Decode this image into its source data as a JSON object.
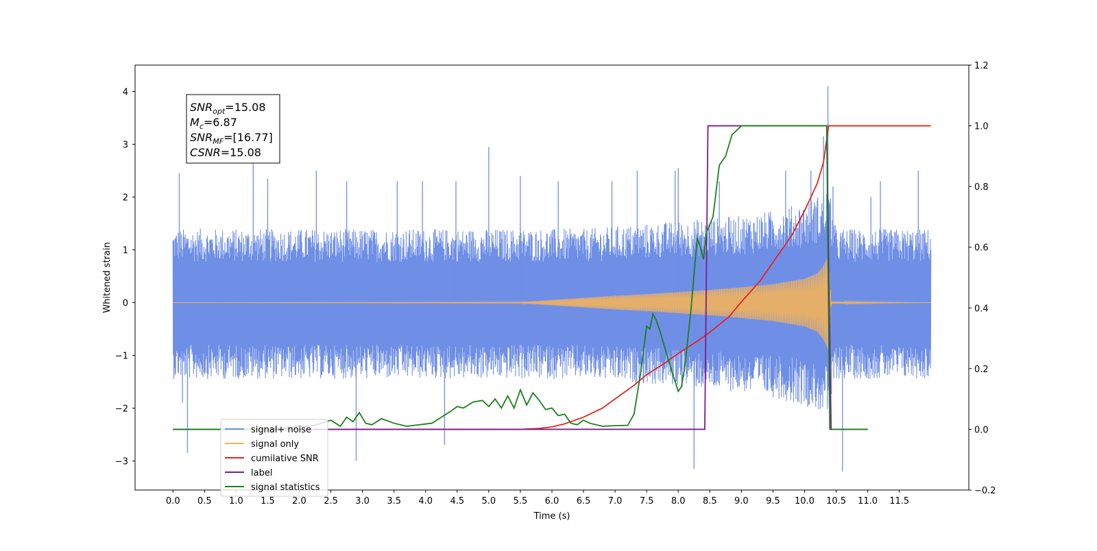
{
  "chart_data": {
    "type": "line",
    "title": "",
    "xlabel": "Time (s)",
    "ylabel": "Whitened strain",
    "xlim": [
      -0.6,
      12.6
    ],
    "ylim": [
      -3.55,
      4.5
    ],
    "y2lim": [
      -0.2,
      1.2
    ],
    "x_ticks": [
      0.0,
      0.5,
      1.0,
      1.5,
      2.0,
      2.5,
      3.0,
      3.5,
      4.0,
      4.5,
      5.0,
      5.5,
      6.0,
      6.5,
      7.0,
      7.5,
      8.0,
      8.5,
      9.0,
      9.5,
      10.0,
      10.5,
      11.0,
      11.5
    ],
    "x_tick_labels": [
      "0.0",
      "0.5",
      "1.0",
      "1.5",
      "2.0",
      "2.5",
      "3.0",
      "3.5",
      "4.0",
      "4.5",
      "5.0",
      "5.5",
      "6.0",
      "6.5",
      "7.0",
      "7.5",
      "8.0",
      "8.5",
      "9.0",
      "9.5",
      "10.0",
      "10.5",
      "11.0",
      "11.5"
    ],
    "y_ticks": [
      -3,
      -2,
      -1,
      0,
      1,
      2,
      3,
      4
    ],
    "y_tick_labels": [
      "−3",
      "−2",
      "−1",
      "0",
      "1",
      "2",
      "3",
      "4"
    ],
    "y2_ticks": [
      -0.2,
      0.0,
      0.2,
      0.4,
      0.6,
      0.8,
      1.0,
      1.2
    ],
    "y2_tick_labels": [
      "−0.2",
      "0.0",
      "0.2",
      "0.4",
      "0.6",
      "0.8",
      "1.0",
      "1.2"
    ],
    "grid": false,
    "legend_position": "lower-left",
    "annotation": {
      "lines": [
        {
          "base": "SNR",
          "sub": "opt",
          "rest": "=15.08"
        },
        {
          "base": "M",
          "sub": "c",
          "rest": "=6.87"
        },
        {
          "base": "SNR",
          "sub": "MF",
          "rest": "=[16.77]"
        },
        {
          "base": "CSNR",
          "sub": "",
          "rest": "=15.08"
        }
      ]
    },
    "series": [
      {
        "name": "signal+ noise",
        "color": "#6f8fe6",
        "axis": "left",
        "kind": "noise_envelope",
        "t_start": 0.0,
        "t_end": 12.0,
        "envelope_x": [
          0.0,
          1.0,
          2.0,
          3.0,
          4.0,
          5.0,
          6.0,
          6.5,
          7.0,
          7.5,
          8.0,
          8.5,
          9.0,
          9.5,
          10.0,
          10.3,
          10.38,
          10.5,
          11.0,
          12.0
        ],
        "envelope_upper": [
          1.4,
          1.4,
          1.4,
          1.4,
          1.4,
          1.4,
          1.4,
          1.4,
          1.45,
          1.5,
          1.55,
          1.6,
          1.65,
          1.75,
          1.9,
          2.1,
          2.2,
          1.4,
          1.4,
          1.4
        ],
        "envelope_lower": [
          -1.45,
          -1.45,
          -1.45,
          -1.45,
          -1.45,
          -1.45,
          -1.45,
          -1.45,
          -1.5,
          -1.55,
          -1.6,
          -1.65,
          -1.7,
          -1.8,
          -1.95,
          -2.1,
          -2.2,
          -1.45,
          -1.45,
          -1.45
        ],
        "spikes": [
          {
            "x": 0.1,
            "y": 2.45
          },
          {
            "x": 0.15,
            "y": -1.9
          },
          {
            "x": 0.23,
            "y": -2.85
          },
          {
            "x": 1.27,
            "y": 2.65
          },
          {
            "x": 1.5,
            "y": 2.35
          },
          {
            "x": 2.27,
            "y": 2.5
          },
          {
            "x": 2.75,
            "y": 2.3
          },
          {
            "x": 2.9,
            "y": -3.0
          },
          {
            "x": 3.55,
            "y": 2.3
          },
          {
            "x": 3.95,
            "y": 2.3
          },
          {
            "x": 4.3,
            "y": -2.7
          },
          {
            "x": 4.48,
            "y": 2.3
          },
          {
            "x": 5.0,
            "y": 2.95
          },
          {
            "x": 5.5,
            "y": 2.4
          },
          {
            "x": 6.1,
            "y": 2.3
          },
          {
            "x": 6.95,
            "y": 2.3
          },
          {
            "x": 7.35,
            "y": 2.5
          },
          {
            "x": 7.95,
            "y": 2.5
          },
          {
            "x": 8.0,
            "y": 2.55
          },
          {
            "x": 8.25,
            "y": -3.15
          },
          {
            "x": 8.65,
            "y": 2.3
          },
          {
            "x": 9.7,
            "y": 2.5
          },
          {
            "x": 10.1,
            "y": 2.5
          },
          {
            "x": 10.3,
            "y": 3.15
          },
          {
            "x": 10.37,
            "y": 4.1
          },
          {
            "x": 10.45,
            "y": 2.2
          },
          {
            "x": 10.6,
            "y": -3.2
          },
          {
            "x": 11.05,
            "y": 2.0
          },
          {
            "x": 11.2,
            "y": 2.3
          },
          {
            "x": 11.8,
            "y": 2.5
          }
        ]
      },
      {
        "name": "signal only",
        "color": "#f2b25c",
        "axis": "left",
        "kind": "chirp",
        "t_start": 0.0,
        "t_end": 12.0,
        "envelope_x": [
          0.0,
          5.5,
          6.0,
          6.5,
          7.0,
          7.5,
          8.0,
          8.5,
          9.0,
          9.5,
          10.0,
          10.2,
          10.3,
          10.38,
          10.42,
          12.0
        ],
        "envelope_amp": [
          0.0,
          0.01,
          0.05,
          0.09,
          0.13,
          0.16,
          0.2,
          0.24,
          0.29,
          0.35,
          0.45,
          0.55,
          0.7,
          0.9,
          0.02,
          0.0
        ]
      },
      {
        "name": "cumilative SNR",
        "color": "#e8221c",
        "axis": "right",
        "x": [
          0.0,
          5.5,
          5.8,
          6.0,
          6.2,
          6.5,
          6.8,
          7.0,
          7.3,
          7.5,
          7.8,
          8.0,
          8.3,
          8.5,
          8.8,
          9.0,
          9.3,
          9.5,
          9.8,
          10.0,
          10.2,
          10.3,
          10.38,
          11.0,
          12.0
        ],
        "values": [
          0.0,
          0.0,
          0.003,
          0.008,
          0.018,
          0.04,
          0.07,
          0.1,
          0.145,
          0.18,
          0.22,
          0.25,
          0.29,
          0.32,
          0.37,
          0.42,
          0.49,
          0.55,
          0.64,
          0.72,
          0.81,
          0.88,
          1.0,
          1.0,
          1.0
        ]
      },
      {
        "name": "label",
        "color": "#7b1c87",
        "axis": "right",
        "x": [
          0.0,
          8.42,
          8.47,
          10.35,
          10.42,
          11.0
        ],
        "values": [
          0.0,
          0.0,
          1.0,
          1.0,
          0.0,
          0.0
        ]
      },
      {
        "name": "signal statistics",
        "color": "#1a7f1a",
        "axis": "right",
        "x": [
          0.0,
          1.5,
          2.0,
          2.2,
          2.35,
          2.5,
          2.65,
          2.75,
          2.85,
          2.95,
          3.05,
          3.15,
          3.3,
          3.5,
          3.7,
          3.9,
          4.1,
          4.25,
          4.4,
          4.5,
          4.6,
          4.75,
          4.9,
          5.0,
          5.1,
          5.2,
          5.3,
          5.4,
          5.5,
          5.6,
          5.7,
          5.8,
          5.9,
          6.0,
          6.1,
          6.2,
          6.3,
          6.4,
          6.5,
          6.6,
          6.8,
          7.0,
          7.2,
          7.3,
          7.4,
          7.5,
          7.55,
          7.6,
          7.65,
          7.7,
          7.8,
          7.9,
          8.0,
          8.05,
          8.1,
          8.2,
          8.3,
          8.35,
          8.4,
          8.45,
          8.55,
          8.65,
          8.75,
          8.85,
          8.95,
          9.0,
          9.05,
          9.2,
          9.5,
          10.0,
          10.3,
          10.35,
          10.4,
          10.45,
          10.5,
          11.0
        ],
        "values": [
          0.0,
          0.0,
          0.01,
          0.01,
          0.02,
          0.03,
          0.01,
          0.04,
          0.025,
          0.055,
          0.02,
          0.015,
          0.035,
          0.02,
          0.01,
          0.015,
          0.02,
          0.04,
          0.06,
          0.075,
          0.07,
          0.09,
          0.095,
          0.075,
          0.1,
          0.07,
          0.11,
          0.07,
          0.13,
          0.08,
          0.12,
          0.095,
          0.065,
          0.07,
          0.045,
          0.05,
          0.02,
          0.015,
          0.03,
          0.02,
          0.01,
          0.012,
          0.013,
          0.05,
          0.18,
          0.34,
          0.33,
          0.38,
          0.36,
          0.33,
          0.26,
          0.19,
          0.125,
          0.14,
          0.2,
          0.39,
          0.63,
          0.6,
          0.56,
          0.65,
          0.7,
          0.87,
          0.9,
          0.97,
          0.99,
          1.0,
          1.0,
          1.0,
          1.0,
          1.0,
          1.0,
          1.0,
          0.0,
          0.0,
          0.0,
          0.0
        ]
      }
    ]
  }
}
